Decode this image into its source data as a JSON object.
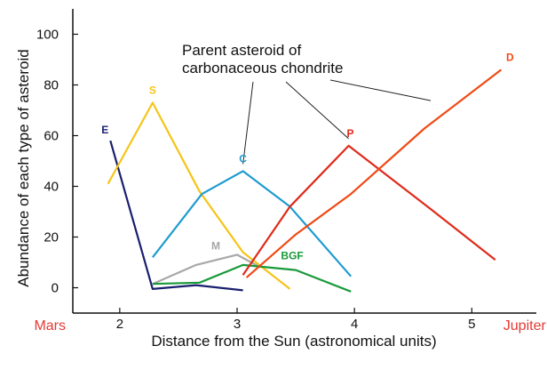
{
  "chart_data": {
    "type": "line",
    "xlabel": "Distance from the Sun (astronomical units)",
    "ylabel": "Abundance of each type of asteroid",
    "xlim": [
      1.6,
      5.55
    ],
    "ylim": [
      -10,
      110
    ],
    "xticks": [
      2,
      3,
      4,
      5
    ],
    "yticks": [
      0,
      20,
      40,
      60,
      80,
      100
    ],
    "grid": false,
    "x_end_labels": [
      {
        "text": "Mars",
        "x": 1.6,
        "color": "#e53935"
      },
      {
        "text": "Jupiter",
        "x": 5.45,
        "color": "#e53935"
      }
    ],
    "annotation": {
      "text_lines": [
        "Parent asteroid of",
        "carbonaceous chondrite"
      ],
      "targets": [
        {
          "series": "C",
          "x": 3.05,
          "y": 46
        },
        {
          "series": "P",
          "x": 3.95,
          "y": 56
        },
        {
          "series": "D",
          "x": 4.65,
          "y": 71
        }
      ]
    },
    "series": [
      {
        "name": "E",
        "color": "#1a1f6e",
        "points": [
          [
            1.92,
            58
          ],
          [
            2.28,
            -0.5
          ],
          [
            2.65,
            1
          ],
          [
            3.05,
            -1
          ]
        ]
      },
      {
        "name": "S",
        "color": "#f5c518",
        "points": [
          [
            1.9,
            41
          ],
          [
            2.28,
            73
          ],
          [
            2.68,
            38
          ],
          [
            3.05,
            14
          ],
          [
            3.45,
            -0.5
          ]
        ]
      },
      {
        "name": "M",
        "color": "#a8a8a8",
        "points": [
          [
            2.28,
            1.5
          ],
          [
            2.65,
            9
          ],
          [
            3.0,
            13
          ],
          [
            3.2,
            8
          ]
        ]
      },
      {
        "name": "C",
        "color": "#1e9bd0",
        "points": [
          [
            2.28,
            12
          ],
          [
            2.7,
            37
          ],
          [
            3.05,
            46
          ],
          [
            3.45,
            32
          ],
          [
            3.97,
            4.5
          ]
        ]
      },
      {
        "name": "BGF",
        "color": "#1a9a3a",
        "points": [
          [
            2.28,
            1.5
          ],
          [
            2.68,
            2
          ],
          [
            3.05,
            9
          ],
          [
            3.5,
            7
          ],
          [
            3.97,
            -1.5
          ]
        ]
      },
      {
        "name": "P",
        "color": "#e02a1a",
        "points": [
          [
            3.05,
            5
          ],
          [
            3.45,
            32
          ],
          [
            3.95,
            56
          ],
          [
            4.65,
            31
          ],
          [
            5.2,
            11
          ]
        ]
      },
      {
        "name": "D",
        "color": "#f04a15",
        "points": [
          [
            3.08,
            4
          ],
          [
            3.5,
            21
          ],
          [
            3.97,
            37
          ],
          [
            4.6,
            63
          ],
          [
            5.25,
            86
          ]
        ]
      }
    ]
  }
}
